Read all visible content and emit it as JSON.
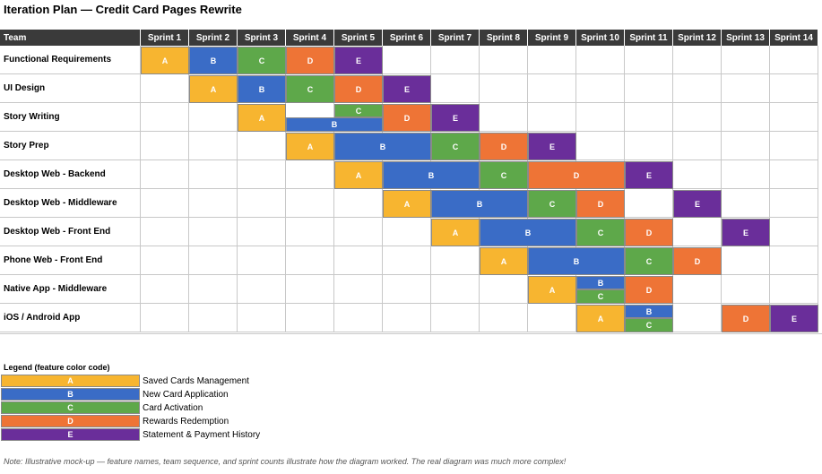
{
  "title": "Iteration Plan — Credit Card Pages Rewrite",
  "header": {
    "team": "Team",
    "sprints": [
      "Sprint 1",
      "Sprint 2",
      "Sprint 3",
      "Sprint 4",
      "Sprint 5",
      "Sprint 6",
      "Sprint 7",
      "Sprint 8",
      "Sprint 9",
      "Sprint 10",
      "Sprint 11",
      "Sprint 12",
      "Sprint 13",
      "Sprint 14"
    ]
  },
  "colors": {
    "A": "#f7b530",
    "B": "#3a6cc6",
    "C": "#5ea84a",
    "D": "#ee7436",
    "E": "#6a2e9a",
    "header": "#3a3a3a"
  },
  "rows": [
    {
      "team": "Functional Requirements",
      "blocks": [
        {
          "f": "A",
          "start": 1,
          "end": 1
        },
        {
          "f": "B",
          "start": 2,
          "end": 2
        },
        {
          "f": "C",
          "start": 3,
          "end": 3
        },
        {
          "f": "D",
          "start": 4,
          "end": 4
        },
        {
          "f": "E",
          "start": 5,
          "end": 5
        }
      ]
    },
    {
      "team": "UI Design",
      "blocks": [
        {
          "f": "A",
          "start": 2,
          "end": 2
        },
        {
          "f": "B",
          "start": 3,
          "end": 3
        },
        {
          "f": "C",
          "start": 4,
          "end": 4
        },
        {
          "f": "D",
          "start": 5,
          "end": 5
        },
        {
          "f": "E",
          "start": 6,
          "end": 6
        }
      ]
    },
    {
      "team": "Story Writing",
      "blocks": [
        {
          "f": "A",
          "start": 3,
          "end": 3
        },
        {
          "f": "C",
          "start": 5,
          "end": 5,
          "half": "top"
        },
        {
          "f": "B",
          "start": 4,
          "end": 5,
          "half": "bottom"
        },
        {
          "f": "D",
          "start": 6,
          "end": 6
        },
        {
          "f": "E",
          "start": 7,
          "end": 7
        }
      ]
    },
    {
      "team": "Story Prep",
      "blocks": [
        {
          "f": "A",
          "start": 4,
          "end": 4
        },
        {
          "f": "B",
          "start": 5,
          "end": 6
        },
        {
          "f": "C",
          "start": 7,
          "end": 7
        },
        {
          "f": "D",
          "start": 8,
          "end": 8
        },
        {
          "f": "E",
          "start": 9,
          "end": 9
        }
      ]
    },
    {
      "team": "Desktop Web - Backend",
      "blocks": [
        {
          "f": "A",
          "start": 5,
          "end": 5
        },
        {
          "f": "B",
          "start": 6,
          "end": 7
        },
        {
          "f": "C",
          "start": 8,
          "end": 8
        },
        {
          "f": "D",
          "start": 9,
          "end": 10
        },
        {
          "f": "E",
          "start": 11,
          "end": 11
        }
      ]
    },
    {
      "team": "Desktop Web - Middleware",
      "blocks": [
        {
          "f": "A",
          "start": 6,
          "end": 6
        },
        {
          "f": "B",
          "start": 7,
          "end": 8
        },
        {
          "f": "C",
          "start": 9,
          "end": 9
        },
        {
          "f": "D",
          "start": 10,
          "end": 10
        },
        {
          "f": "E",
          "start": 12,
          "end": 12
        }
      ]
    },
    {
      "team": "Desktop Web - Front End",
      "blocks": [
        {
          "f": "A",
          "start": 7,
          "end": 7
        },
        {
          "f": "B",
          "start": 8,
          "end": 9
        },
        {
          "f": "C",
          "start": 10,
          "end": 10
        },
        {
          "f": "D",
          "start": 11,
          "end": 11
        },
        {
          "f": "E",
          "start": 13,
          "end": 13
        }
      ]
    },
    {
      "team": "Phone Web - Front End",
      "blocks": [
        {
          "f": "A",
          "start": 8,
          "end": 8
        },
        {
          "f": "B",
          "start": 9,
          "end": 10
        },
        {
          "f": "C",
          "start": 11,
          "end": 11
        },
        {
          "f": "D",
          "start": 12,
          "end": 12
        }
      ]
    },
    {
      "team": "Native App - Middleware",
      "blocks": [
        {
          "f": "A",
          "start": 9,
          "end": 9
        },
        {
          "f": "B",
          "start": 10,
          "end": 10,
          "half": "top"
        },
        {
          "f": "C",
          "start": 10,
          "end": 10,
          "half": "bottom"
        },
        {
          "f": "D",
          "start": 11,
          "end": 11
        }
      ]
    },
    {
      "team": "iOS / Android App",
      "blocks": [
        {
          "f": "A",
          "start": 10,
          "end": 10
        },
        {
          "f": "B",
          "start": 11,
          "end": 11,
          "half": "top"
        },
        {
          "f": "C",
          "start": 11,
          "end": 11,
          "half": "bottom"
        },
        {
          "f": "D",
          "start": 13,
          "end": 13
        },
        {
          "f": "E",
          "start": 14,
          "end": 14
        }
      ]
    }
  ],
  "legend": {
    "title": "Legend (feature color code)",
    "items": [
      {
        "code": "A",
        "name": "Saved Cards Management"
      },
      {
        "code": "B",
        "name": "New Card Application"
      },
      {
        "code": "C",
        "name": "Card Activation"
      },
      {
        "code": "D",
        "name": "Rewards Redemption"
      },
      {
        "code": "E",
        "name": "Statement & Payment History"
      }
    ]
  },
  "note": "Note: Illustrative mock-up — feature names, team sequence, and sprint counts illustrate how the diagram worked.  The real diagram was much more complex!"
}
